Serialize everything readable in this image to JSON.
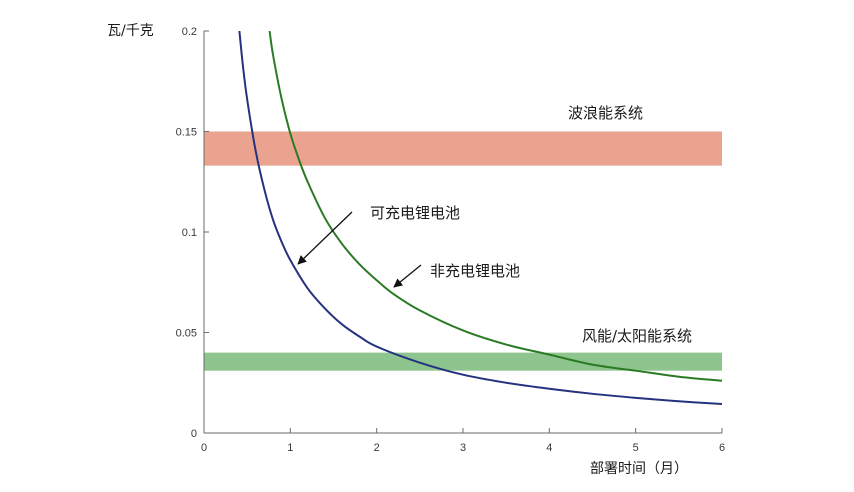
{
  "chart_data": {
    "type": "line",
    "title": "",
    "xlabel": "部署时间（月）",
    "ylabel": "瓦/千克",
    "xlim": [
      0,
      6
    ],
    "ylim": [
      0,
      0.2
    ],
    "x_ticks": [
      0,
      1,
      2,
      3,
      4,
      5,
      6
    ],
    "x_tick_labels": [
      "0",
      "1",
      "2",
      "3",
      "4",
      "5",
      "6"
    ],
    "y_ticks": [
      0,
      0.05,
      0.1,
      0.15,
      0.2
    ],
    "y_tick_labels": [
      "0",
      "0.05",
      "0.1",
      "0.15",
      "0.2"
    ],
    "grid": false,
    "series": [
      {
        "name": "可充电锂电池",
        "color": "#25327f",
        "x": [
          0.41,
          0.45,
          0.5,
          0.6,
          0.7,
          0.8,
          0.9,
          1.0,
          1.2,
          1.4,
          1.6,
          1.8,
          2.0,
          2.5,
          3.0,
          3.5,
          4.0,
          4.5,
          5.0,
          5.5,
          6.0
        ],
        "y": [
          0.2,
          0.183,
          0.166,
          0.14,
          0.121,
          0.106,
          0.095,
          0.086,
          0.072,
          0.062,
          0.054,
          0.048,
          0.043,
          0.035,
          0.029,
          0.025,
          0.022,
          0.0195,
          0.0175,
          0.0158,
          0.0144
        ]
      },
      {
        "name": "非充电锂电池",
        "color": "#2b7a24",
        "x": [
          0.76,
          0.8,
          0.9,
          1.0,
          1.1,
          1.2,
          1.4,
          1.6,
          1.8,
          2.0,
          2.2,
          2.5,
          3.0,
          3.5,
          4.0,
          4.5,
          5.0,
          5.5,
          6.0
        ],
        "y": [
          0.2,
          0.188,
          0.166,
          0.149,
          0.136,
          0.125,
          0.107,
          0.094,
          0.084,
          0.076,
          0.069,
          0.061,
          0.051,
          0.044,
          0.039,
          0.034,
          0.031,
          0.028,
          0.026
        ]
      }
    ],
    "bands": [
      {
        "name": "波浪能系统",
        "color": "#e9a38f",
        "x_range": [
          0,
          6
        ],
        "y_range": [
          0.133,
          0.15
        ]
      },
      {
        "name": "风能/太阳能系统",
        "color": "#8ec58e",
        "x_range": [
          0,
          6
        ],
        "y_range": [
          0.031,
          0.04
        ]
      }
    ]
  }
}
